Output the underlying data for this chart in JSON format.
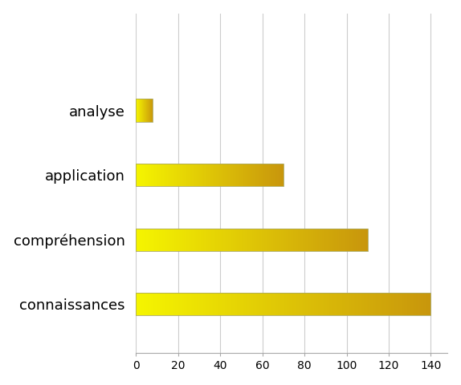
{
  "categories": [
    "connaissances",
    "compréhension",
    "application",
    "analyse"
  ],
  "values": [
    140,
    110,
    70,
    8
  ],
  "xlim": [
    0,
    148
  ],
  "xticks": [
    0,
    20,
    40,
    60,
    80,
    100,
    120,
    140
  ],
  "bar_height": 0.35,
  "background_color": "#ffffff",
  "grid_color": "#cccccc",
  "label_fontsize": 13,
  "tick_fontsize": 10,
  "color_left": "#f5f500",
  "color_right": "#c8960c",
  "fig_width": 5.74,
  "fig_height": 4.8,
  "ylim_bottom": -0.75,
  "ylim_top": 4.5
}
